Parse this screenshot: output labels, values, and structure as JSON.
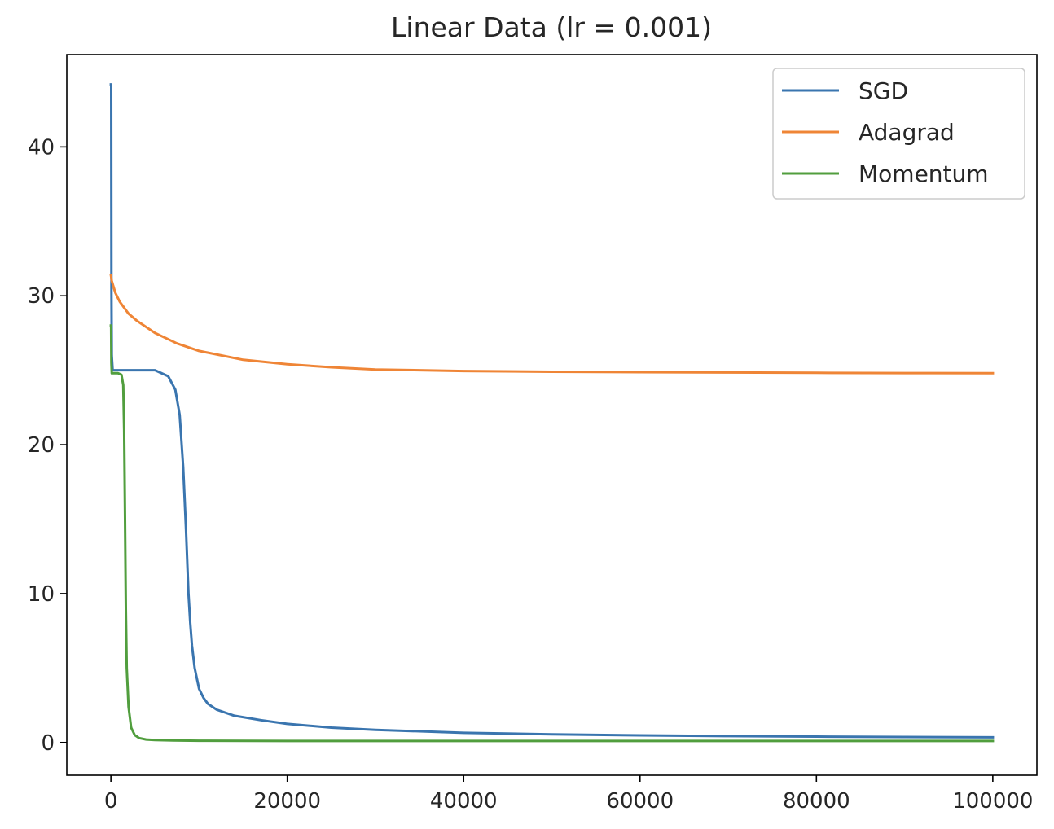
{
  "chart_data": {
    "type": "line",
    "title": "Linear Data (lr = 0.001)",
    "xlabel": "",
    "ylabel": "",
    "xlim": [
      -5000,
      105000
    ],
    "ylim": [
      -2.2,
      46.2
    ],
    "xticks": [
      0,
      20000,
      40000,
      60000,
      80000,
      100000
    ],
    "yticks": [
      0,
      10,
      20,
      30,
      40
    ],
    "grid": false,
    "legend_position": "top-right",
    "series": [
      {
        "name": "SGD",
        "color": "#3a75af",
        "x": [
          0,
          30,
          60,
          100,
          200,
          400,
          1000,
          3000,
          5000,
          6500,
          7300,
          7800,
          8200,
          8500,
          8800,
          9000,
          9200,
          9500,
          10000,
          10500,
          11000,
          12000,
          14000,
          17000,
          20000,
          25000,
          30000,
          40000,
          50000,
          60000,
          70000,
          80000,
          90000,
          100000
        ],
        "y": [
          44.2,
          44.2,
          30.5,
          26.0,
          25.0,
          25.0,
          25.0,
          25.0,
          25.0,
          24.6,
          23.7,
          22.0,
          18.5,
          14.5,
          10.0,
          8.0,
          6.5,
          5.0,
          3.6,
          3.0,
          2.6,
          2.2,
          1.8,
          1.5,
          1.25,
          1.0,
          0.85,
          0.65,
          0.55,
          0.48,
          0.43,
          0.4,
          0.37,
          0.35
        ]
      },
      {
        "name": "Adagrad",
        "color": "#ef8536",
        "x": [
          0,
          100,
          500,
          1000,
          2000,
          3000,
          5000,
          7500,
          10000,
          15000,
          20000,
          25000,
          30000,
          40000,
          50000,
          60000,
          70000,
          80000,
          90000,
          100000
        ],
        "y": [
          31.4,
          31.0,
          30.2,
          29.6,
          28.8,
          28.3,
          27.5,
          26.8,
          26.3,
          25.7,
          25.4,
          25.2,
          25.05,
          24.95,
          24.9,
          24.87,
          24.85,
          24.83,
          24.81,
          24.8
        ]
      },
      {
        "name": "Momentum",
        "color": "#519e3e",
        "x": [
          0,
          20,
          50,
          100,
          300,
          800,
          1200,
          1400,
          1500,
          1600,
          1700,
          1800,
          2000,
          2300,
          2700,
          3200,
          4000,
          5000,
          7000,
          10000,
          20000,
          40000,
          60000,
          80000,
          100000
        ],
        "y": [
          28.0,
          28.0,
          25.5,
          24.8,
          24.8,
          24.8,
          24.7,
          24.0,
          21.0,
          15.0,
          9.0,
          5.0,
          2.4,
          1.0,
          0.5,
          0.3,
          0.2,
          0.17,
          0.14,
          0.12,
          0.1,
          0.1,
          0.1,
          0.1,
          0.1
        ]
      }
    ]
  }
}
